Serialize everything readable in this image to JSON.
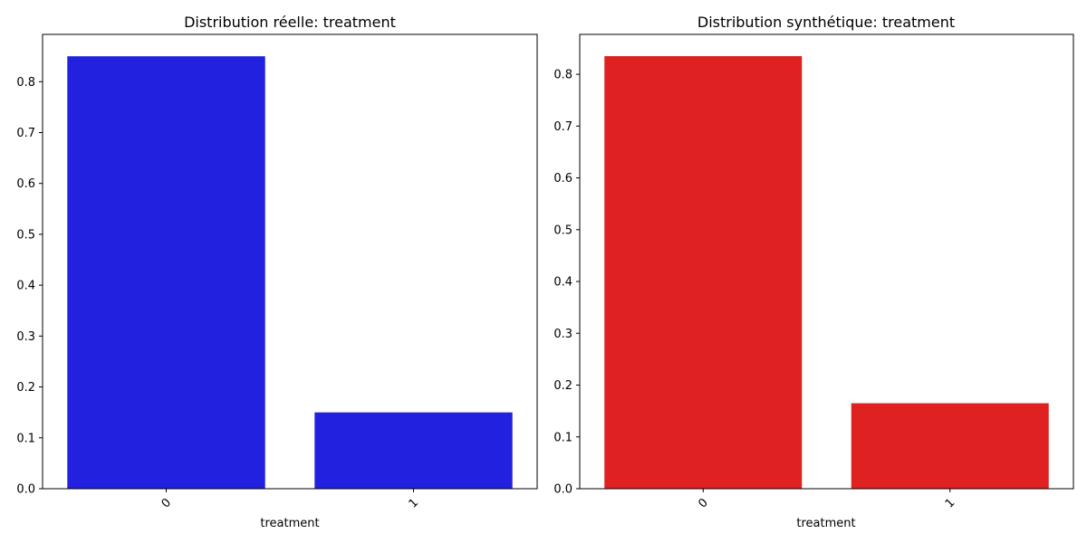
{
  "colors": {
    "real": "#2121df",
    "synthetic": "#df2121"
  },
  "chart_data": [
    {
      "type": "bar",
      "title": "Distribution réelle: treatment",
      "xlabel": "treatment",
      "ylabel": "",
      "categories": [
        "0",
        "1"
      ],
      "values": [
        0.85,
        0.15
      ],
      "ylim": [
        0,
        0.893
      ],
      "yticks": [
        "0.0",
        "0.1",
        "0.2",
        "0.3",
        "0.4",
        "0.5",
        "0.6",
        "0.7",
        "0.8"
      ],
      "grid": false,
      "color": "#2121df"
    },
    {
      "type": "bar",
      "title": "Distribution synthétique: treatment",
      "xlabel": "treatment",
      "ylabel": "",
      "categories": [
        "0",
        "1"
      ],
      "values": [
        0.835,
        0.165
      ],
      "ylim": [
        0,
        0.877
      ],
      "yticks": [
        "0.0",
        "0.1",
        "0.2",
        "0.3",
        "0.4",
        "0.5",
        "0.6",
        "0.7",
        "0.8"
      ],
      "grid": false,
      "color": "#df2121"
    }
  ]
}
